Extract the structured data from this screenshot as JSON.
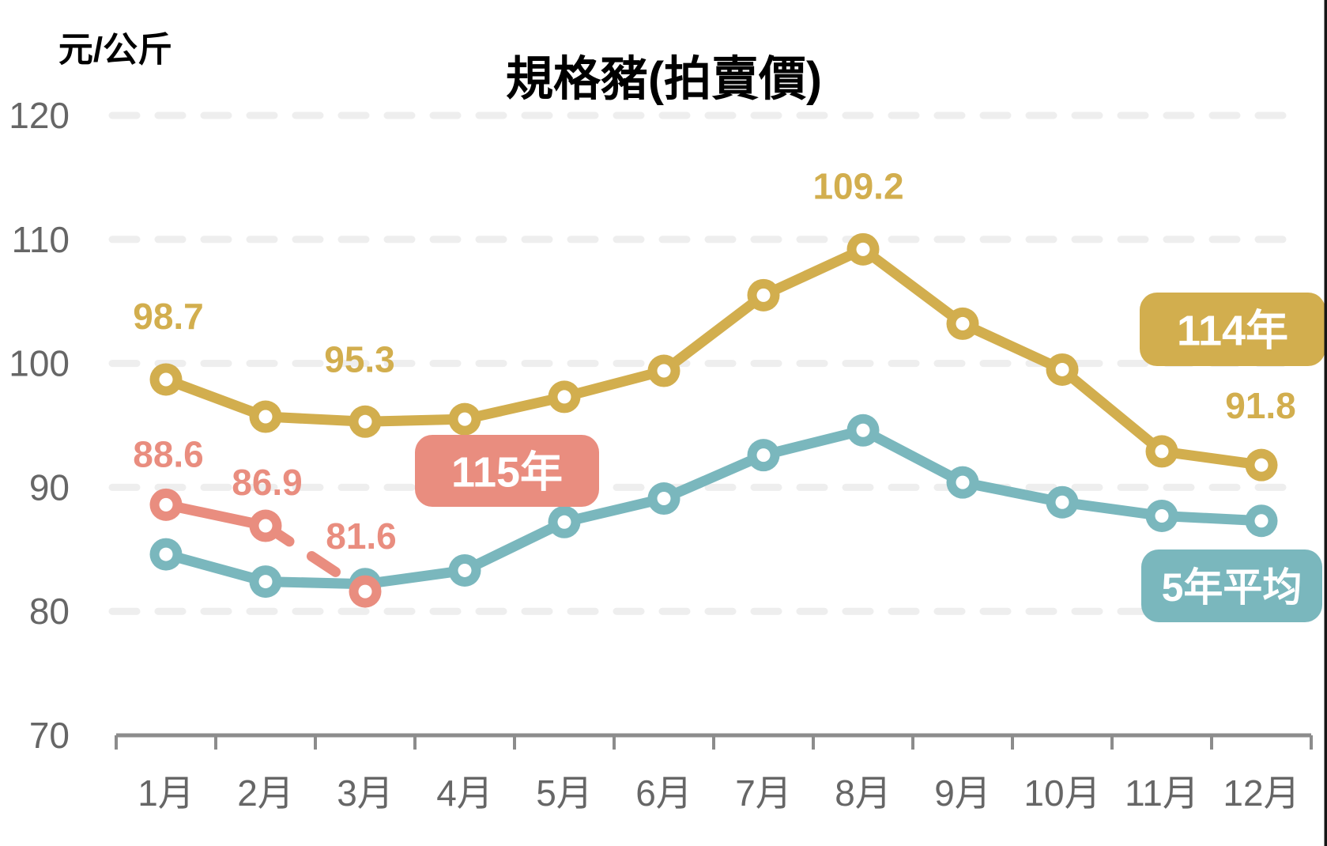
{
  "page": {
    "background_color": "#FFFFFF",
    "right_border_color": "#161616"
  },
  "chart_data": {
    "type": "line",
    "title": "規格豬(拍賣價)",
    "y_axis_unit": "元/公斤",
    "ylim": [
      70,
      120
    ],
    "y_ticks": [
      120,
      110,
      100,
      90,
      80,
      70
    ],
    "categories": [
      "1月",
      "2月",
      "3月",
      "4月",
      "5月",
      "6月",
      "7月",
      "8月",
      "9月",
      "10月",
      "11月",
      "12月"
    ],
    "grid": "horizontal-dashed",
    "colors": {
      "grid": "#EEEEEE",
      "axis": "#8C8C8C",
      "tick_text": "#666666",
      "title_text": "#595959",
      "marker_hole": "#FFFFFF"
    },
    "series": [
      {
        "key": "avg5",
        "name": "5年平均",
        "color": "#7AB7BD",
        "values": [
          84.6,
          82.4,
          82.2,
          83.3,
          87.2,
          89.1,
          92.6,
          94.6,
          90.4,
          88.8,
          87.7,
          87.3
        ],
        "dashed_segment_start_index": null,
        "point_labels": []
      },
      {
        "key": "y115",
        "name": "115年",
        "color": "#E98D7F",
        "values": [
          88.6,
          86.9,
          81.6
        ],
        "dashed_segment_start_index": 1,
        "point_labels": [
          {
            "month": "1月",
            "month_index": 0,
            "text": "88.6"
          },
          {
            "month": "2月",
            "month_index": 1,
            "text": "86.9"
          },
          {
            "month": "3月",
            "month_index": 2,
            "text": "81.6"
          }
        ]
      },
      {
        "key": "y114",
        "name": "114年",
        "color": "#D2AE4E",
        "values": [
          98.7,
          95.7,
          95.3,
          95.5,
          97.3,
          99.4,
          105.5,
          109.2,
          103.2,
          99.5,
          92.9,
          91.8
        ],
        "dashed_segment_start_index": null,
        "point_labels": [
          {
            "month": "1月",
            "month_index": 0,
            "text": "98.7"
          },
          {
            "month": "3月",
            "month_index": 2,
            "text": "95.3"
          },
          {
            "month": "8月",
            "month_index": 7,
            "text": "109.2"
          },
          {
            "month": "12月",
            "month_index": 11,
            "text": "91.8"
          }
        ]
      }
    ],
    "legend_badges": [
      {
        "series": "y115",
        "label": "115年"
      },
      {
        "series": "y114",
        "label": "114年"
      },
      {
        "series": "avg5",
        "label": "5年平均"
      }
    ]
  }
}
